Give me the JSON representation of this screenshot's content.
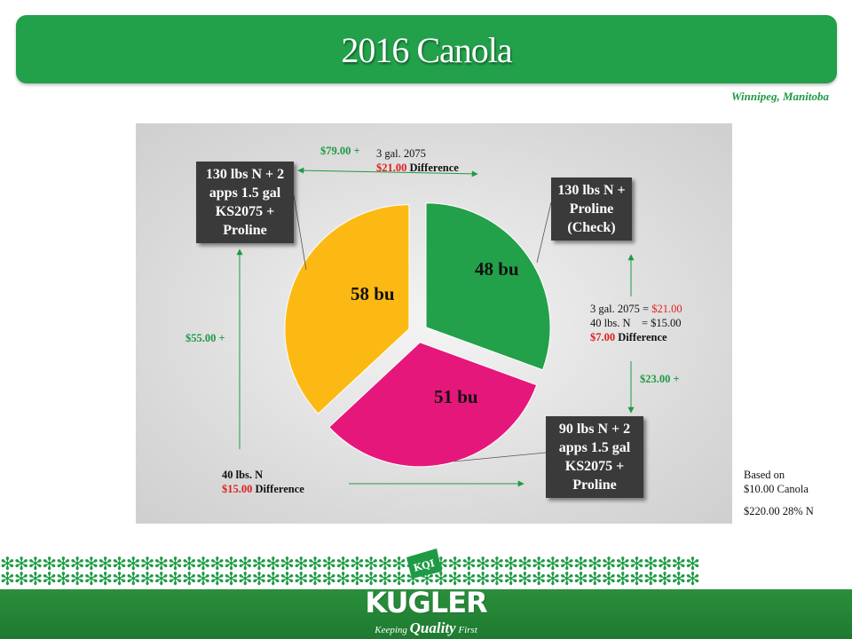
{
  "title": "2016 Canola",
  "location": "Winnipeg, Manitoba",
  "chart_data": {
    "type": "pie",
    "title": "2016 Canola",
    "slices": [
      {
        "name": "130 lbs N + Proline (Check)",
        "label": "48 bu",
        "value": 48,
        "color": "#22a04a"
      },
      {
        "name": "90 lbs N + 2 apps 1.5 gal KS2075 + Proline",
        "label": "51 bu",
        "value": 51,
        "color": "#e6177b"
      },
      {
        "name": "130 lbs N + 2 apps 1.5 gal KS2075 + Proline",
        "label": "58 bu",
        "value": 58,
        "color": "#fdb913"
      }
    ]
  },
  "boxes": {
    "top_left": "130 lbs N + 2 apps 1.5 gal KS2075 + Proline",
    "top_right": "130 lbs N + Proline (Check)",
    "bottom_right": "90 lbs N + 2 apps 1.5 gal KS2075 + Proline"
  },
  "annotations": {
    "top_gain": "$79.00 +",
    "top_line1": "3 gal. 2075",
    "top_diff_amount": "$21.00",
    "top_diff_word": "Difference",
    "left_gain": "$55.00 +",
    "right_line1_prefix": "3 gal. 2075 = ",
    "right_line1_amount": "$21.00",
    "right_line2": "40 lbs. N    = $15.00",
    "right_diff_amount": "$7.00",
    "right_diff_word": "Difference",
    "right_gain": "$23.00 +",
    "bottom_line1": "40 lbs. N",
    "bottom_diff_amount": "$15.00",
    "bottom_diff_word": "Difference"
  },
  "basis": {
    "line1": "Based on",
    "line2": "$10.00 Canola",
    "line3": "$220.00 28% N"
  },
  "footer": {
    "brand": "KUGLER",
    "badge": "KQI",
    "tagline_pre": "Keeping",
    "tagline_big": "Quality",
    "tagline_post": "First",
    "star_row": "✻✻✻✻✻✻✻✻✻✻✻✻✻✻✻✻✻✻✻✻✻✻✻✻✻✻✻✻✻✻✻✻✻✻✻✻✻✻✻✻✻✻✻✻✻✻✻✻✻✻",
    "star_color": "#1e9a44",
    "band_color": "#1e7a30"
  }
}
